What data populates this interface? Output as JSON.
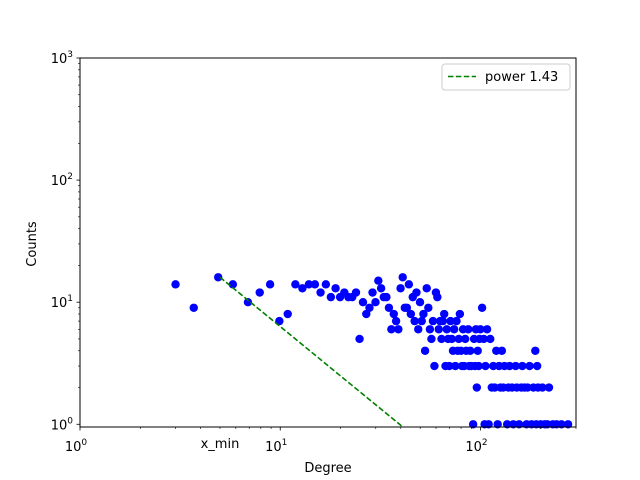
{
  "chart_data": {
    "type": "scatter",
    "xlabel": "Degree",
    "ylabel": "Counts",
    "xscale": "log",
    "yscale": "log",
    "xlim": [
      1,
      300
    ],
    "ylim": [
      0.95,
      1000
    ],
    "x_ticks": [
      {
        "base": "10",
        "exp": "0",
        "value": 1
      },
      {
        "base": "10",
        "exp": "1",
        "value": 10
      },
      {
        "base": "10",
        "exp": "2",
        "value": 100
      }
    ],
    "y_ticks": [
      {
        "base": "10",
        "exp": "0",
        "value": 1
      },
      {
        "base": "10",
        "exp": "1",
        "value": 10
      },
      {
        "base": "10",
        "exp": "2",
        "value": 100
      },
      {
        "base": "10",
        "exp": "3",
        "value": 1000
      }
    ],
    "annotations": [
      {
        "text": "x_min",
        "x": 5.0
      }
    ],
    "grid": false,
    "legend_position": "top-right",
    "series": [
      {
        "type": "scatter",
        "color": "#0000ff",
        "points": [
          [
            3.0,
            14
          ],
          [
            3.7,
            9
          ],
          [
            4.9,
            16
          ],
          [
            5.8,
            14
          ],
          [
            6.9,
            10
          ],
          [
            7.9,
            12
          ],
          [
            8.9,
            14
          ],
          [
            9.9,
            7
          ],
          [
            10.9,
            8
          ],
          [
            11.9,
            14
          ],
          [
            12.9,
            13
          ],
          [
            13.9,
            14
          ],
          [
            14.9,
            14
          ],
          [
            15.9,
            12
          ],
          [
            16.9,
            14
          ],
          [
            17.9,
            11
          ],
          [
            18.9,
            13
          ],
          [
            19.9,
            11
          ],
          [
            20.9,
            12
          ],
          [
            21.9,
            11
          ],
          [
            22.9,
            11
          ],
          [
            23.9,
            12
          ],
          [
            24.9,
            5
          ],
          [
            25.9,
            10
          ],
          [
            26.9,
            8
          ],
          [
            27.9,
            9
          ],
          [
            28.9,
            12
          ],
          [
            29.9,
            10
          ],
          [
            30.9,
            15
          ],
          [
            31.9,
            13
          ],
          [
            32.9,
            11
          ],
          [
            33.9,
            11
          ],
          [
            34.9,
            9
          ],
          [
            35.9,
            6
          ],
          [
            36.9,
            8
          ],
          [
            37.9,
            7
          ],
          [
            38.9,
            6
          ],
          [
            39.9,
            13
          ],
          [
            40.9,
            16
          ],
          [
            41.9,
            9
          ],
          [
            42.9,
            9
          ],
          [
            43.9,
            14
          ],
          [
            44.9,
            8
          ],
          [
            45.9,
            11
          ],
          [
            46.9,
            7
          ],
          [
            47.9,
            12
          ],
          [
            48.9,
            6
          ],
          [
            49.9,
            10
          ],
          [
            50.9,
            7
          ],
          [
            51.9,
            8
          ],
          [
            52.9,
            4
          ],
          [
            53.9,
            13
          ],
          [
            54.9,
            9
          ],
          [
            55.9,
            6
          ],
          [
            56.9,
            5
          ],
          [
            57.9,
            7
          ],
          [
            58.9,
            3
          ],
          [
            59.9,
            12
          ],
          [
            60.9,
            11
          ],
          [
            61.9,
            6
          ],
          [
            62.9,
            7
          ],
          [
            63.9,
            5
          ],
          [
            64.9,
            7
          ],
          [
            65.9,
            8
          ],
          [
            66.9,
            3
          ],
          [
            67.9,
            6
          ],
          [
            68.9,
            5
          ],
          [
            69.9,
            3
          ],
          [
            70.9,
            7
          ],
          [
            71.9,
            5
          ],
          [
            72.9,
            4
          ],
          [
            73.9,
            6
          ],
          [
            74.9,
            3
          ],
          [
            75.9,
            7
          ],
          [
            76.9,
            4
          ],
          [
            77.9,
            5
          ],
          [
            78.9,
            8
          ],
          [
            79.9,
            4
          ],
          [
            80.9,
            3
          ],
          [
            81.9,
            6
          ],
          [
            82.9,
            3
          ],
          [
            83.9,
            5
          ],
          [
            84.9,
            4
          ],
          [
            86.9,
            6
          ],
          [
            87.9,
            3
          ],
          [
            88.9,
            4
          ],
          [
            89.9,
            3
          ],
          [
            91.9,
            1
          ],
          [
            92.9,
            5
          ],
          [
            93.9,
            3
          ],
          [
            94.9,
            6
          ],
          [
            95.9,
            2
          ],
          [
            96.9,
            4
          ],
          [
            97.9,
            3
          ],
          [
            98.9,
            5
          ],
          [
            99.9,
            6
          ],
          [
            101.9,
            9
          ],
          [
            103.9,
            5
          ],
          [
            104.9,
            1
          ],
          [
            105.9,
            3
          ],
          [
            107.9,
            6
          ],
          [
            109.9,
            1
          ],
          [
            111.9,
            5
          ],
          [
            113.9,
            2
          ],
          [
            115.9,
            3
          ],
          [
            117.9,
            2
          ],
          [
            119.9,
            4
          ],
          [
            121.9,
            1
          ],
          [
            123.9,
            3
          ],
          [
            125.9,
            2
          ],
          [
            127.9,
            4
          ],
          [
            129.9,
            2
          ],
          [
            131.9,
            3
          ],
          [
            135.9,
            1
          ],
          [
            137.9,
            2
          ],
          [
            139.9,
            3
          ],
          [
            143.9,
            2
          ],
          [
            145.9,
            1
          ],
          [
            149.9,
            3
          ],
          [
            151.9,
            2
          ],
          [
            155.9,
            1
          ],
          [
            159.9,
            2
          ],
          [
            161.9,
            3
          ],
          [
            165.9,
            2
          ],
          [
            169.9,
            1
          ],
          [
            171.9,
            2
          ],
          [
            175.9,
            3
          ],
          [
            179.9,
            1
          ],
          [
            183.9,
            2
          ],
          [
            187.9,
            4
          ],
          [
            189.9,
            1
          ],
          [
            191.9,
            3
          ],
          [
            193.9,
            2
          ],
          [
            199.9,
            1
          ],
          [
            203.9,
            2
          ],
          [
            209.9,
            1
          ],
          [
            215.9,
            1
          ],
          [
            219.9,
            2
          ],
          [
            229.9,
            1
          ],
          [
            239.9,
            1
          ],
          [
            253.9,
            1
          ],
          [
            273.9,
            1
          ]
        ]
      },
      {
        "name": "power 1.43",
        "type": "line",
        "dash": "dashed",
        "color": "#008000",
        "points": [
          [
            5.0,
            16.0
          ],
          [
            41.0,
            0.95
          ]
        ]
      }
    ]
  }
}
